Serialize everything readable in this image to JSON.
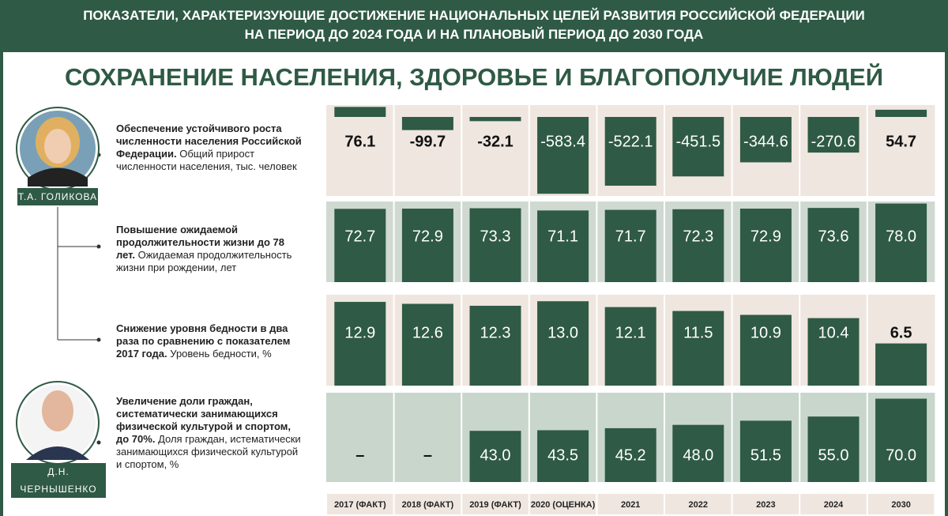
{
  "header": {
    "title": "ПОКАЗАТЕЛИ, ХАРАКТЕРИЗУЮЩИЕ ДОСТИЖЕНИЕ НАЦИОНАЛЬНЫХ ЦЕЛЕЙ РАЗВИТИЯ РОССИЙСКОЙ ФЕДЕРАЦИИ",
    "subtitle": "НА ПЕРИОД ДО 2024 ГОДА И НА ПЛАНОВЫЙ ПЕРИОД ДО 2030 ГОДА",
    "section": "СОХРАНЕНИЕ НАСЕЛЕНИЯ, ЗДОРОВЬЕ И БЛАГОПОЛУЧИЕ ЛЮДЕЙ"
  },
  "people": [
    {
      "name": "Т.А. ГОЛИКОВА"
    },
    {
      "name": "Д.Н. ЧЕРНЫШЕНКО"
    }
  ],
  "chart_data": [
    {
      "type": "bar",
      "title": "Обеспечение устойчивого роста численности населения Российской Федерации.",
      "subtitle": "Общий прирост численности населения, тыс. человек",
      "values": [
        76.1,
        -99.7,
        -32.1,
        -583.4,
        -522.1,
        -451.5,
        -344.6,
        -270.6,
        54.7
      ],
      "ylim": [
        -600,
        90
      ],
      "color": "#2f5a45",
      "background": "#efe6df"
    },
    {
      "type": "bar",
      "title": "Повышение ожидаемой продолжительности жизни до 78 лет.",
      "subtitle": "Ожидаемая продолжительность жизни при рождении, лет",
      "values": [
        72.7,
        72.9,
        73.3,
        71.1,
        71.7,
        72.3,
        72.9,
        73.6,
        78.0
      ],
      "value_labels": [
        "72.7",
        "72.9",
        "73.3",
        "71.1",
        "71.7",
        "72.3",
        "72.9",
        "73.6",
        "78.0"
      ],
      "ylim": [
        0,
        80
      ],
      "color": "#2f5a45",
      "background": "#cfd9d1"
    },
    {
      "type": "bar",
      "title": "Снижение уровня бедности в два раза по сравнению с показателем 2017 года.",
      "subtitle": "Уровень бедности, %",
      "values": [
        12.9,
        12.6,
        12.3,
        13.0,
        12.1,
        11.5,
        10.9,
        10.4,
        6.5
      ],
      "value_labels": [
        "12.9",
        "12.6",
        "12.3",
        "13.0",
        "12.1",
        "11.5",
        "10.9",
        "10.4",
        "6.5"
      ],
      "ylim": [
        0,
        14
      ],
      "color": "#2f5a45",
      "background": "#efe6df"
    },
    {
      "type": "bar",
      "title": "Увеличение доли граждан, систематически занимающихся физической культурой и спортом, до 70%.",
      "subtitle": "Доля граждан, истематически занимающихся физической культурой и спортом, %",
      "values": [
        null,
        null,
        43.0,
        43.5,
        45.2,
        48.0,
        51.5,
        55.0,
        70.0
      ],
      "value_labels": [
        "–",
        "–",
        "43.0",
        "43.5",
        "45.2",
        "48.0",
        "51.5",
        "55.0",
        "70.0"
      ],
      "ylim": [
        0,
        75
      ],
      "color": "#2f5a45",
      "background": "#c8d6cc",
      "categories": [
        "2017 (ФАКТ)",
        "2018 (ФАКТ)",
        "2019 (ФАКТ)",
        "2020 (ОЦЕНКА)",
        "2021",
        "2022",
        "2023",
        "2024",
        "2030"
      ]
    }
  ]
}
